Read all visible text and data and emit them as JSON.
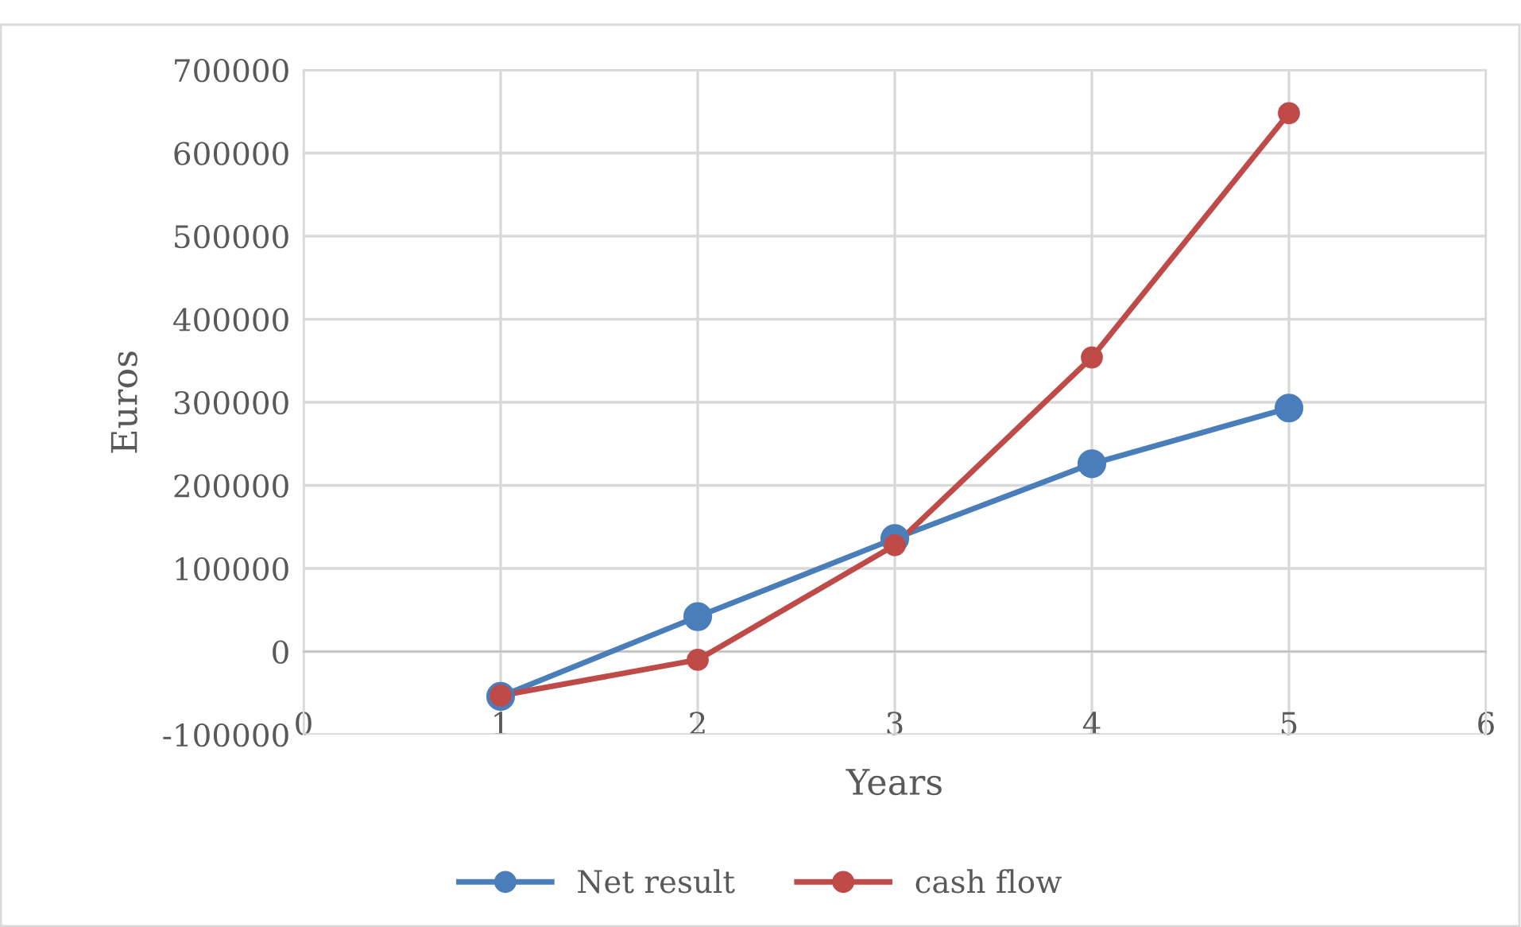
{
  "chart_data": {
    "type": "line",
    "xlabel": "Years",
    "ylabel": "Euros",
    "x": [
      1,
      2,
      3,
      4,
      5
    ],
    "series": [
      {
        "name": "Net result",
        "color": "#4a7ebb",
        "values": [
          -54000,
          42000,
          136000,
          226000,
          293000
        ]
      },
      {
        "name": "cash flow",
        "color": "#be4b48",
        "values": [
          -53000,
          -10000,
          128000,
          354000,
          648000
        ]
      }
    ],
    "xlim": [
      0,
      6
    ],
    "xticks": [
      0,
      1,
      2,
      3,
      4,
      5,
      6
    ],
    "ylim": [
      -100000,
      700000
    ],
    "yticks": [
      -100000,
      0,
      100000,
      200000,
      300000,
      400000,
      500000,
      600000,
      700000
    ],
    "grid": true,
    "legend": "bottom",
    "marker": "circle",
    "line_style": "solid"
  }
}
